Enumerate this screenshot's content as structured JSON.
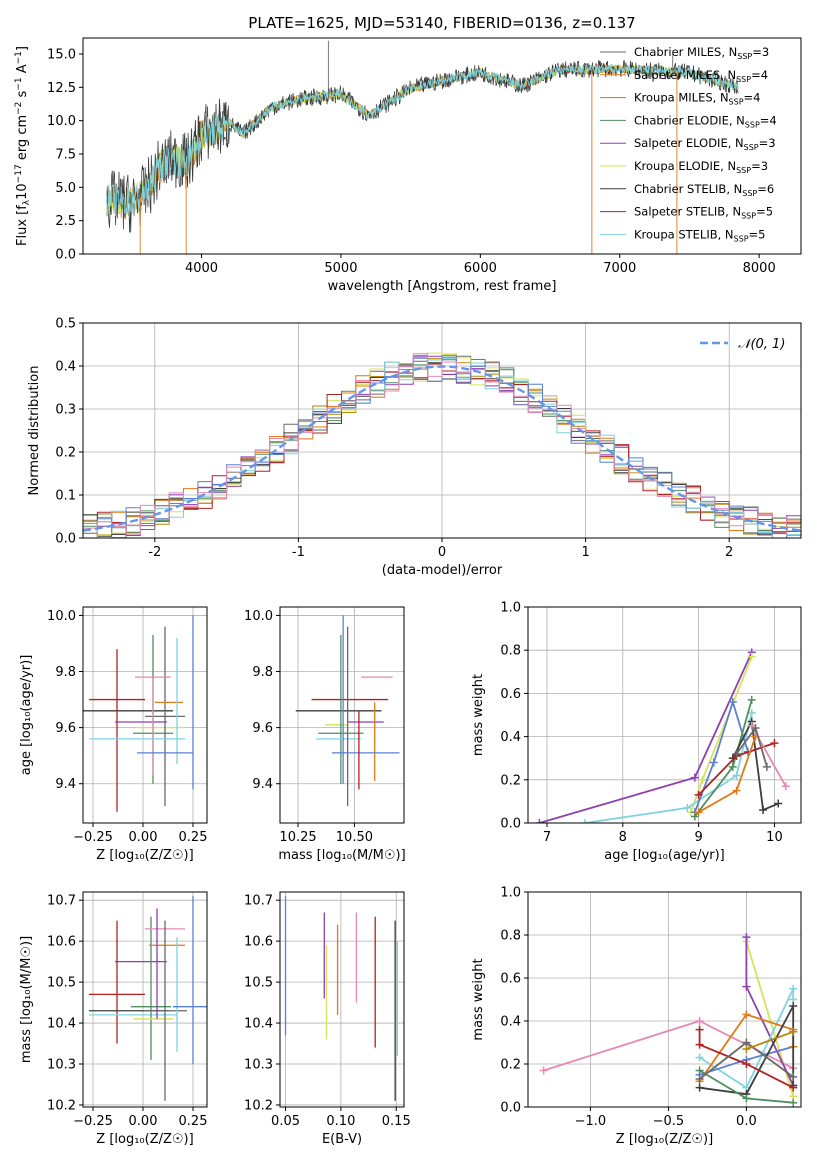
{
  "figure": {
    "title": "PLATE=1625, MJD=53140, FIBERID=0136, z=0.137"
  },
  "colors": {
    "Chabrier MILES": "#6a6a6a",
    "Salpeter MILES": "#e07b1a",
    "Kroupa MILES": "#b8860b",
    "Chabrier ELODIE": "#4f8f5f",
    "Salpeter ELODIE": "#8e3fb0",
    "Kroupa ELODIE": "#d6e35a",
    "Chabrier STELIB": "#3d3d3d",
    "Salpeter STELIB": "#b22222",
    "Kroupa STELIB": "#7fd3de",
    "extra_blue": "#5b7fd6",
    "extra_pink": "#e58ab3",
    "gauss": "#6495ed"
  },
  "chart_data": [
    {
      "id": "spectrum",
      "type": "line",
      "xlabel": "wavelength [Angstrom, rest frame]",
      "ylabel": "Flux [f$_\\lambda$10$^{-17}$ erg cm$^{-2}$ s$^{-1}$ A$^{-1}$]",
      "ylabel_parts": [
        "Flux [f",
        "λ",
        "10",
        "−17",
        " erg cm",
        "−2",
        " s",
        "−1",
        " A",
        "−1",
        "]"
      ],
      "xlim": [
        3150,
        8300
      ],
      "ylim": [
        0,
        16.2
      ],
      "xticks": [
        4000,
        5000,
        6000,
        7000,
        8000
      ],
      "yticks": [
        0.0,
        2.5,
        5.0,
        7.5,
        10.0,
        12.5,
        15.0
      ],
      "legend_position": "top-right",
      "legend": [
        {
          "name": "Chabrier MILES",
          "nssp": "3"
        },
        {
          "name": "Salpeter MILES",
          "nssp": "4"
        },
        {
          "name": "Kroupa MILES",
          "nssp": "4"
        },
        {
          "name": "Chabrier ELODIE",
          "nssp": "4"
        },
        {
          "name": "Salpeter ELODIE",
          "nssp": "3"
        },
        {
          "name": "Kroupa ELODIE",
          "nssp": "3"
        },
        {
          "name": "Chabrier STELIB",
          "nssp": "6"
        },
        {
          "name": "Salpeter STELIB",
          "nssp": "5"
        },
        {
          "name": "Kroupa STELIB",
          "nssp": "5"
        }
      ],
      "continuum": [
        [
          3320,
          4.1
        ],
        [
          3500,
          3.8
        ],
        [
          3600,
          4.6
        ],
        [
          3700,
          6.5
        ],
        [
          3800,
          7.2
        ],
        [
          3900,
          6.8
        ],
        [
          4000,
          9.0
        ],
        [
          4200,
          9.8
        ],
        [
          4300,
          9.0
        ],
        [
          4500,
          11.0
        ],
        [
          4700,
          11.6
        ],
        [
          5000,
          12.0
        ],
        [
          5200,
          10.4
        ],
        [
          5500,
          12.4
        ],
        [
          5800,
          13.2
        ],
        [
          6000,
          13.6
        ],
        [
          6300,
          12.6
        ],
        [
          6560,
          13.8
        ],
        [
          7000,
          13.9
        ],
        [
          7500,
          13.6
        ],
        [
          7850,
          12.5
        ]
      ],
      "spikes": [
        {
          "x": 3560,
          "y": 0
        },
        {
          "x": 3890,
          "y": 0
        },
        {
          "x": 4910,
          "y": 16.0
        },
        {
          "x": 6800,
          "y": 0
        },
        {
          "x": 7380,
          "y": 15.0
        },
        {
          "x": 7410,
          "y": 0
        }
      ]
    },
    {
      "id": "residuals",
      "type": "area",
      "xlabel": "(data-model)/error",
      "ylabel": "Normed distribution",
      "xlim": [
        -2.5,
        2.5
      ],
      "ylim": [
        0,
        0.5
      ],
      "xticks": [
        -2,
        -1,
        0,
        1,
        2
      ],
      "yticks": [
        0.0,
        0.1,
        0.2,
        0.3,
        0.4,
        0.5
      ],
      "legend_position": "top-right",
      "gauss_label": "𝒩(0, 1)",
      "bin_width": 0.1
    },
    {
      "id": "age_vs_Z",
      "type": "scatter",
      "xlabel": "Z [log₁₀(Z/Z☉)]",
      "ylabel": "age  [log₁₀(age/yr)]",
      "xlim": [
        -0.3,
        0.32
      ],
      "ylim": [
        9.26,
        10.03
      ],
      "xticks": [
        -0.25,
        0.0,
        0.25
      ],
      "xticklabels": [
        "−0.25",
        "0.00",
        "0.25"
      ],
      "yticks": [
        9.4,
        9.6,
        9.8,
        10.0
      ],
      "points": [
        {
          "c": "Chabrier STELIB",
          "x": -0.08,
          "y": 9.66,
          "xe": 0.23,
          "yelo": 0.0,
          "yehi": 0.0
        },
        {
          "c": "Salpeter STELIB",
          "x": -0.13,
          "y": 9.7,
          "xe": 0.14,
          "yelo": 0.4,
          "yehi": 0.18
        },
        {
          "c": "Salpeter ELODIE",
          "x": -0.01,
          "y": 9.62,
          "xe": 0.13,
          "yelo": 0.0,
          "yehi": 0.0
        },
        {
          "c": "Chabrier ELODIE",
          "x": 0.05,
          "y": 9.58,
          "xe": 0.1,
          "yelo": 0.18,
          "yehi": 0.35
        },
        {
          "c": "Kroupa ELODIE",
          "x": 0.09,
          "y": 9.6,
          "xe": 0.12,
          "yelo": 0.0,
          "yehi": 0.0
        },
        {
          "c": "Chabrier MILES",
          "x": 0.11,
          "y": 9.64,
          "xe": 0.1,
          "yelo": 0.32,
          "yehi": 0.32
        },
        {
          "c": "Salpeter MILES",
          "x": 0.13,
          "y": 9.69,
          "xe": 0.07,
          "yelo": 0.0,
          "yehi": 0.0
        },
        {
          "c": "extra_pink",
          "x": 0.05,
          "y": 9.78,
          "xe": 0.09,
          "yelo": 0.35,
          "yehi": 0.0
        },
        {
          "c": "Kroupa STELIB",
          "x": -0.03,
          "y": 9.56,
          "xe": 0.24,
          "yelo": 0.0,
          "yehi": 0.0
        },
        {
          "c": "Kroupa STELIB",
          "x": 0.17,
          "y": 9.65,
          "xe": 0.0,
          "yelo": 0.18,
          "yehi": 0.27
        },
        {
          "c": "extra_blue",
          "x": 0.11,
          "y": 9.51,
          "xe": 0.14,
          "yelo": 0.0,
          "yehi": 0.0
        },
        {
          "c": "extra_blue",
          "x": 0.25,
          "y": 9.7,
          "xe": 0.0,
          "yelo": 0.32,
          "yehi": 0.3
        }
      ]
    },
    {
      "id": "age_vs_mass",
      "type": "scatter",
      "xlabel": "mass [log₁₀(M/M☉)]",
      "ylabel": "",
      "xlim": [
        10.17,
        10.72
      ],
      "ylim": [
        9.26,
        10.03
      ],
      "xticks": [
        10.25,
        10.5
      ],
      "xticklabels": [
        "10.25",
        "10.50"
      ],
      "yticks": [
        9.4,
        9.6,
        9.8,
        10.0
      ],
      "points": [
        {
          "c": "Chabrier STELIB",
          "x": 10.43,
          "y": 9.66,
          "xe": 0.19,
          "yelo": 0.0,
          "yehi": 0.0
        },
        {
          "c": "Salpeter STELIB",
          "x": 10.48,
          "y": 9.7,
          "xe": 0.17,
          "yelo": 0.0,
          "yehi": 0.0
        },
        {
          "c": "Salpeter ELODIE",
          "x": 10.55,
          "y": 9.62,
          "xe": 0.08,
          "yelo": 0.0,
          "yehi": 0.0
        },
        {
          "c": "Kroupa ELODIE",
          "x": 10.42,
          "y": 9.61,
          "xe": 0.05,
          "yelo": 0.0,
          "yehi": 0.0
        },
        {
          "c": "Chabrier ELODIE",
          "x": 10.44,
          "y": 9.58,
          "xe": 0.1,
          "yelo": 0.18,
          "yehi": 0.35
        },
        {
          "c": "Kroupa STELIB",
          "x": 10.43,
          "y": 9.56,
          "xe": 0.1,
          "yelo": 0.0,
          "yehi": 0.0
        },
        {
          "c": "Chabrier MILES",
          "x": 10.47,
          "y": 9.64,
          "xe": 0.0,
          "yelo": 0.32,
          "yehi": 0.32
        },
        {
          "c": "Salpeter MILES",
          "x": 10.59,
          "y": 9.69,
          "xe": 0.0,
          "yelo": 0.28,
          "yehi": 0.0
        },
        {
          "c": "extra_pink",
          "x": 10.6,
          "y": 9.78,
          "xe": 0.07,
          "yelo": 0.0,
          "yehi": 0.0
        },
        {
          "c": "extra_blue",
          "x": 10.55,
          "y": 9.51,
          "xe": 0.15,
          "yelo": 0.0,
          "yehi": 0.0
        },
        {
          "c": "extra_blue",
          "x": 10.45,
          "y": 9.7,
          "xe": 0.0,
          "yelo": 0.3,
          "yehi": 0.3
        },
        {
          "c": "Salpeter STELIB",
          "x": 10.52,
          "y": 9.66,
          "xe": 0.0,
          "yelo": 0.28,
          "yehi": 0.0
        }
      ]
    },
    {
      "id": "weight_vs_age",
      "type": "line",
      "xlabel": "age  [log₁₀(age/yr)]",
      "ylabel": "mass weight",
      "xlim": [
        6.75,
        10.35
      ],
      "ylim": [
        0,
        1.0
      ],
      "xticks": [
        7,
        8,
        9,
        10
      ],
      "yticks": [
        0.0,
        0.2,
        0.4,
        0.6,
        0.8,
        1.0
      ],
      "series": [
        {
          "c": "Salpeter ELODIE",
          "x": [
            6.9,
            8.95,
            9.7
          ],
          "y": [
            0.0,
            0.21,
            0.79
          ]
        },
        {
          "c": "Kroupa ELODIE",
          "x": [
            8.9,
            9.05,
            9.7
          ],
          "y": [
            0.05,
            0.2,
            0.77
          ]
        },
        {
          "c": "Kroupa STELIB",
          "x": [
            7.5,
            8.85,
            9.5,
            9.7
          ],
          "y": [
            0.0,
            0.07,
            0.22,
            0.51
          ]
        },
        {
          "c": "extra_blue",
          "x": [
            8.95,
            9.2,
            9.45,
            9.65
          ],
          "y": [
            0.05,
            0.28,
            0.56,
            0.33
          ]
        },
        {
          "c": "Chabrier ELODIE",
          "x": [
            8.95,
            9.45,
            9.7
          ],
          "y": [
            0.03,
            0.26,
            0.57
          ]
        },
        {
          "c": "Chabrier STELIB",
          "x": [
            9.45,
            9.7,
            9.85,
            10.05
          ],
          "y": [
            0.3,
            0.47,
            0.06,
            0.09
          ]
        },
        {
          "c": "Salpeter STELIB",
          "x": [
            9.0,
            9.5,
            10.0
          ],
          "y": [
            0.13,
            0.31,
            0.37
          ]
        },
        {
          "c": "Salpeter MILES",
          "x": [
            9.0,
            9.5,
            9.75
          ],
          "y": [
            0.05,
            0.15,
            0.4
          ]
        },
        {
          "c": "extra_pink",
          "x": [
            9.7,
            10.15
          ],
          "y": [
            0.45,
            0.17
          ]
        },
        {
          "c": "Chabrier MILES",
          "x": [
            9.5,
            9.75,
            9.9
          ],
          "y": [
            0.32,
            0.44,
            0.26
          ]
        }
      ]
    },
    {
      "id": "mass_vs_Z",
      "type": "scatter",
      "xlabel": "Z [log₁₀(Z/Z☉)]",
      "ylabel": "mass [log₁₀(M/M☉)]",
      "xlim": [
        -0.3,
        0.32
      ],
      "ylim": [
        10.195,
        10.72
      ],
      "xticks": [
        -0.25,
        0.0,
        0.25
      ],
      "xticklabels": [
        "−0.25",
        "0.00",
        "0.25"
      ],
      "yticks": [
        10.2,
        10.3,
        10.4,
        10.5,
        10.6,
        10.7
      ],
      "points": [
        {
          "c": "Salpeter STELIB",
          "x": -0.13,
          "y": 10.47,
          "xe": 0.14,
          "yelo": 0.12,
          "yehi": 0.18
        },
        {
          "c": "Chabrier STELIB",
          "x": -0.07,
          "y": 10.43,
          "xe": 0.2,
          "yelo": 0.0,
          "yehi": 0.0
        },
        {
          "c": "Kroupa STELIB",
          "x": -0.05,
          "y": 10.42,
          "xe": 0.22,
          "yelo": 0.0,
          "yehi": 0.0
        },
        {
          "c": "Salpeter ELODIE",
          "x": -0.01,
          "y": 10.55,
          "xe": 0.13,
          "yelo": 0.0,
          "yehi": 0.0
        },
        {
          "c": "Chabrier ELODIE",
          "x": 0.04,
          "y": 10.44,
          "xe": 0.1,
          "yelo": 0.13,
          "yehi": 0.22
        },
        {
          "c": "Kroupa ELODIE",
          "x": 0.05,
          "y": 10.41,
          "xe": 0.1,
          "yelo": 0.0,
          "yehi": 0.0
        },
        {
          "c": "Salpeter MILES",
          "x": 0.12,
          "y": 10.59,
          "xe": 0.09,
          "yelo": 0.0,
          "yehi": 0.0
        },
        {
          "c": "extra_pink",
          "x": 0.11,
          "y": 10.63,
          "xe": 0.1,
          "yelo": 0.0,
          "yehi": 0.0
        },
        {
          "c": "Chabrier MILES",
          "x": 0.11,
          "y": 10.43,
          "xe": 0.11,
          "yelo": 0.22,
          "yehi": 0.22
        },
        {
          "c": "Salpeter ELODIE",
          "x": 0.07,
          "y": 10.55,
          "xe": 0.0,
          "yelo": 0.14,
          "yehi": 0.13
        },
        {
          "c": "Kroupa STELIB",
          "x": 0.17,
          "y": 10.45,
          "xe": 0.0,
          "yelo": 0.12,
          "yehi": 0.16
        },
        {
          "c": "extra_blue",
          "x": 0.24,
          "y": 10.44,
          "xe": 0.09,
          "yelo": 0.0,
          "yehi": 0.0
        },
        {
          "c": "extra_blue",
          "x": 0.25,
          "y": 10.5,
          "xe": 0.0,
          "yelo": 0.2,
          "yehi": 0.21
        }
      ]
    },
    {
      "id": "mass_vs_ebv",
      "type": "scatter",
      "xlabel": "E(B-V)",
      "ylabel": "",
      "xlim": [
        0.045,
        0.157
      ],
      "ylim": [
        10.195,
        10.72
      ],
      "xticks": [
        0.05,
        0.1,
        0.15
      ],
      "xticklabels": [
        "0.05",
        "0.10",
        "0.15"
      ],
      "yticks": [
        10.2,
        10.3,
        10.4,
        10.5,
        10.6,
        10.7
      ],
      "points": [
        {
          "c": "extra_blue",
          "x": 0.05,
          "y": 10.55,
          "xe": 0.0,
          "yelo": 0.18,
          "yehi": 0.16
        },
        {
          "c": "Kroupa ELODIE",
          "x": 0.087,
          "y": 10.47,
          "xe": 0.0,
          "yelo": 0.11,
          "yehi": 0.12
        },
        {
          "c": "Salpeter ELODIE",
          "x": 0.085,
          "y": 10.55,
          "xe": 0.0,
          "yelo": 0.09,
          "yehi": 0.12
        },
        {
          "c": "Salpeter MILES",
          "x": 0.097,
          "y": 10.53,
          "xe": 0.0,
          "yelo": 0.11,
          "yehi": 0.11
        },
        {
          "c": "extra_pink",
          "x": 0.114,
          "y": 10.56,
          "xe": 0.0,
          "yelo": 0.11,
          "yehi": 0.11
        },
        {
          "c": "Salpeter STELIB",
          "x": 0.131,
          "y": 10.5,
          "xe": 0.0,
          "yelo": 0.16,
          "yehi": 0.16
        },
        {
          "c": "Chabrier STELIB",
          "x": 0.149,
          "y": 10.43,
          "xe": 0.0,
          "yelo": 0.22,
          "yehi": 0.22
        },
        {
          "c": "Kroupa STELIB",
          "x": 0.151,
          "y": 10.46,
          "xe": 0.0,
          "yelo": 0.14,
          "yehi": 0.14
        }
      ]
    },
    {
      "id": "weight_vs_Z",
      "type": "line",
      "xlabel": "Z [log₁₀(Z/Z☉)]",
      "ylabel": "mass weight",
      "xlim": [
        -1.4,
        0.35
      ],
      "ylim": [
        0,
        1.0
      ],
      "xticks": [
        -1.0,
        -0.5,
        0.0
      ],
      "xticklabels": [
        "−1.0",
        "−0.5",
        "0.0"
      ],
      "yticks": [
        0.0,
        0.2,
        0.4,
        0.6,
        0.8,
        1.0
      ],
      "series": [
        {
          "c": "extra_pink",
          "x": [
            -1.3,
            -0.3,
            0.3
          ],
          "y": [
            0.17,
            0.4,
            0.18
          ]
        },
        {
          "c": "Kroupa ELODIE",
          "x": [
            0.0,
            0.3
          ],
          "y": [
            0.77,
            0.05
          ]
        },
        {
          "c": "Salpeter ELODIE",
          "x": [
            0.0,
            0.0,
            0.3
          ],
          "y": [
            0.79,
            0.56,
            0.1
          ]
        },
        {
          "c": "Kroupa STELIB",
          "x": [
            -0.3,
            0.0,
            0.3,
            0.3
          ],
          "y": [
            0.23,
            0.09,
            0.55,
            0.5
          ]
        },
        {
          "c": "extra_blue",
          "x": [
            -0.3,
            0.0,
            0.3
          ],
          "y": [
            0.15,
            0.22,
            0.28
          ]
        },
        {
          "c": "Salpeter MILES",
          "x": [
            -0.3,
            0.0,
            0.3,
            0.3
          ],
          "y": [
            0.12,
            0.43,
            0.36,
            0.28
          ]
        },
        {
          "c": "Chabrier STELIB",
          "x": [
            -0.3,
            0.0,
            0.3,
            0.3
          ],
          "y": [
            0.09,
            0.06,
            0.47,
            0.1
          ]
        },
        {
          "c": "Salpeter STELIB",
          "x": [
            -0.3,
            -0.3,
            0.0,
            0.3
          ],
          "y": [
            0.36,
            0.29,
            0.2,
            0.09
          ]
        },
        {
          "c": "Chabrier ELODIE",
          "x": [
            -0.3,
            0.0,
            0.3
          ],
          "y": [
            0.17,
            0.04,
            0.02
          ]
        },
        {
          "c": "Chabrier MILES",
          "x": [
            -0.3,
            0.0,
            0.3
          ],
          "y": [
            0.13,
            0.3,
            0.14
          ]
        },
        {
          "c": "Kroupa MILES",
          "x": [
            0.0,
            0.3
          ],
          "y": [
            0.27,
            0.35
          ]
        }
      ]
    }
  ]
}
